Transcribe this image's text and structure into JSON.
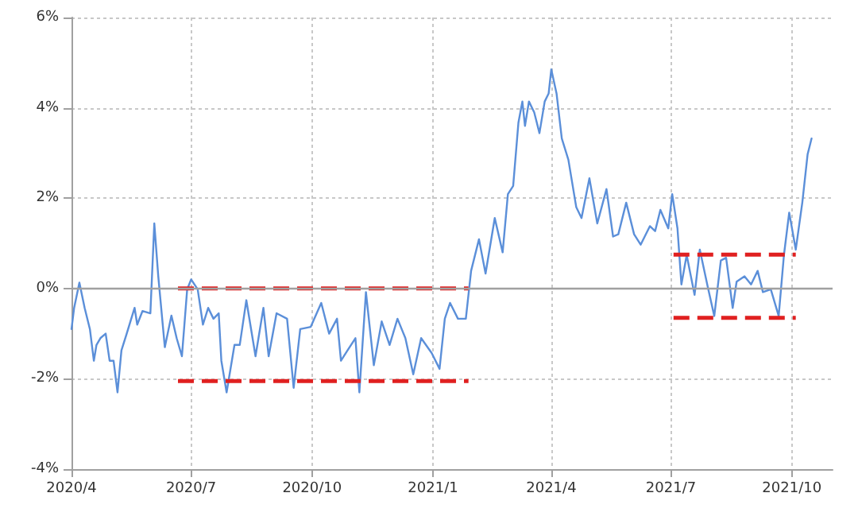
{
  "chart_data": {
    "type": "line",
    "xlim": [
      "2020-04-01",
      "2021-11-01"
    ],
    "xticks": [
      {
        "value": "2020-04-01",
        "label": "2020/4"
      },
      {
        "value": "2020-07-01",
        "label": "2020/7"
      },
      {
        "value": "2020-10-01",
        "label": "2020/10"
      },
      {
        "value": "2021-01-01",
        "label": "2021/1"
      },
      {
        "value": "2021-04-01",
        "label": "2021/4"
      },
      {
        "value": "2021-07-01",
        "label": "2021/7"
      },
      {
        "value": "2021-10-01",
        "label": "2021/10"
      }
    ],
    "ylim": [
      -4,
      6
    ],
    "yticks": [
      {
        "value": -4,
        "label": "-4%"
      },
      {
        "value": -2,
        "label": "-2%"
      },
      {
        "value": 0,
        "label": "0%"
      },
      {
        "value": 2,
        "label": "2%"
      },
      {
        "value": 4,
        "label": "4%"
      },
      {
        "value": 6,
        "label": "6%"
      }
    ],
    "grid": true,
    "marker": "none",
    "ref_lines": [
      {
        "axis": "y",
        "value": 0,
        "color": "#a0a0a0"
      }
    ],
    "series": [
      {
        "color": "#5b8fd9",
        "line_style": "solid",
        "x": [
          "2020-04-01",
          "2020-04-03",
          "2020-04-07",
          "2020-04-11",
          "2020-04-15",
          "2020-04-18",
          "2020-04-20",
          "2020-04-23",
          "2020-04-27",
          "2020-04-30",
          "2020-05-03",
          "2020-05-06",
          "2020-05-09",
          "2020-05-13",
          "2020-05-19",
          "2020-05-21",
          "2020-05-25",
          "2020-05-31",
          "2020-06-03",
          "2020-06-06",
          "2020-06-11",
          "2020-06-16",
          "2020-06-20",
          "2020-06-24",
          "2020-06-28",
          "2020-07-01",
          "2020-07-06",
          "2020-07-10",
          "2020-07-14",
          "2020-07-18",
          "2020-07-22",
          "2020-07-24",
          "2020-07-28",
          "2020-08-03",
          "2020-08-07",
          "2020-08-12",
          "2020-08-19",
          "2020-08-25",
          "2020-08-29",
          "2020-09-04",
          "2020-09-12",
          "2020-09-17",
          "2020-09-22",
          "2020-09-30",
          "2020-10-08",
          "2020-10-14",
          "2020-10-20",
          "2020-10-23",
          "2020-10-28",
          "2020-11-03",
          "2020-11-06",
          "2020-11-11",
          "2020-11-17",
          "2020-11-23",
          "2020-11-29",
          "2020-12-05",
          "2020-12-11",
          "2020-12-17",
          "2020-12-23",
          "2020-12-31",
          "2021-01-06",
          "2021-01-10",
          "2021-01-14",
          "2021-01-20",
          "2021-01-26",
          "2021-01-30",
          "2021-02-05",
          "2021-02-10",
          "2021-02-17",
          "2021-02-23",
          "2021-02-27",
          "2021-03-03",
          "2021-03-07",
          "2021-03-10",
          "2021-03-12",
          "2021-03-15",
          "2021-03-19",
          "2021-03-23",
          "2021-03-27",
          "2021-03-30",
          "2021-04-01",
          "2021-04-05",
          "2021-04-09",
          "2021-04-14",
          "2021-04-20",
          "2021-04-24",
          "2021-04-30",
          "2021-05-06",
          "2021-05-13",
          "2021-05-18",
          "2021-05-22",
          "2021-05-28",
          "2021-06-03",
          "2021-06-08",
          "2021-06-15",
          "2021-06-19",
          "2021-06-23",
          "2021-06-29",
          "2021-07-02",
          "2021-07-06",
          "2021-07-09",
          "2021-07-13",
          "2021-07-19",
          "2021-07-23",
          "2021-07-29",
          "2021-08-03",
          "2021-08-08",
          "2021-08-12",
          "2021-08-17",
          "2021-08-20",
          "2021-08-26",
          "2021-08-31",
          "2021-09-05",
          "2021-09-09",
          "2021-09-15",
          "2021-09-21",
          "2021-09-25",
          "2021-09-29",
          "2021-10-04",
          "2021-10-09",
          "2021-10-13",
          "2021-10-16"
        ],
        "values": [
          -0.9,
          -0.43,
          0.13,
          -0.43,
          -0.9,
          -1.6,
          -1.25,
          -1.1,
          -1.0,
          -1.6,
          -1.6,
          -2.3,
          -1.37,
          -1.0,
          -0.43,
          -0.8,
          -0.5,
          -0.55,
          1.44,
          0.27,
          -1.3,
          -0.6,
          -1.1,
          -1.5,
          -0.02,
          0.2,
          -0.02,
          -0.8,
          -0.43,
          -0.67,
          -0.55,
          -1.6,
          -2.3,
          -1.25,
          -1.25,
          -0.26,
          -1.5,
          -0.43,
          -1.5,
          -0.55,
          -0.67,
          -2.2,
          -0.9,
          -0.85,
          -0.32,
          -1.0,
          -0.67,
          -1.6,
          -1.37,
          -1.1,
          -2.3,
          -0.08,
          -1.7,
          -0.73,
          -1.25,
          -0.67,
          -1.1,
          -1.9,
          -1.1,
          -1.43,
          -1.78,
          -0.67,
          -0.32,
          -0.67,
          -0.67,
          0.39,
          1.09,
          0.33,
          1.56,
          0.8,
          2.09,
          2.27,
          3.67,
          4.14,
          3.6,
          4.14,
          3.9,
          3.44,
          4.14,
          4.32,
          4.85,
          4.32,
          3.32,
          2.85,
          1.8,
          1.56,
          2.44,
          1.44,
          2.2,
          1.15,
          1.2,
          1.9,
          1.2,
          0.97,
          1.38,
          1.27,
          1.74,
          1.33,
          2.09,
          1.33,
          0.09,
          0.74,
          -0.14,
          0.86,
          0.04,
          -0.61,
          0.62,
          0.68,
          -0.43,
          0.15,
          0.27,
          0.09,
          0.39,
          -0.08,
          -0.02,
          -0.61,
          0.74,
          1.68,
          0.86,
          1.91,
          2.97,
          3.32
        ]
      },
      {
        "color": "#e02020",
        "line_style": "dashed",
        "x": [
          "2020-06-21",
          "2021-01-28"
        ],
        "values": [
          0,
          0
        ]
      },
      {
        "color": "#e02020",
        "line_style": "dashed",
        "x": [
          "2020-06-21",
          "2021-01-28"
        ],
        "values": [
          -2.05,
          -2.05
        ]
      },
      {
        "color": "#e02020",
        "line_style": "dashed",
        "x": [
          "2021-07-03",
          "2021-10-04"
        ],
        "values": [
          0.75,
          0.75
        ]
      },
      {
        "color": "#e02020",
        "line_style": "dashed",
        "x": [
          "2021-07-03",
          "2021-10-04"
        ],
        "values": [
          -0.65,
          -0.65
        ]
      }
    ]
  }
}
